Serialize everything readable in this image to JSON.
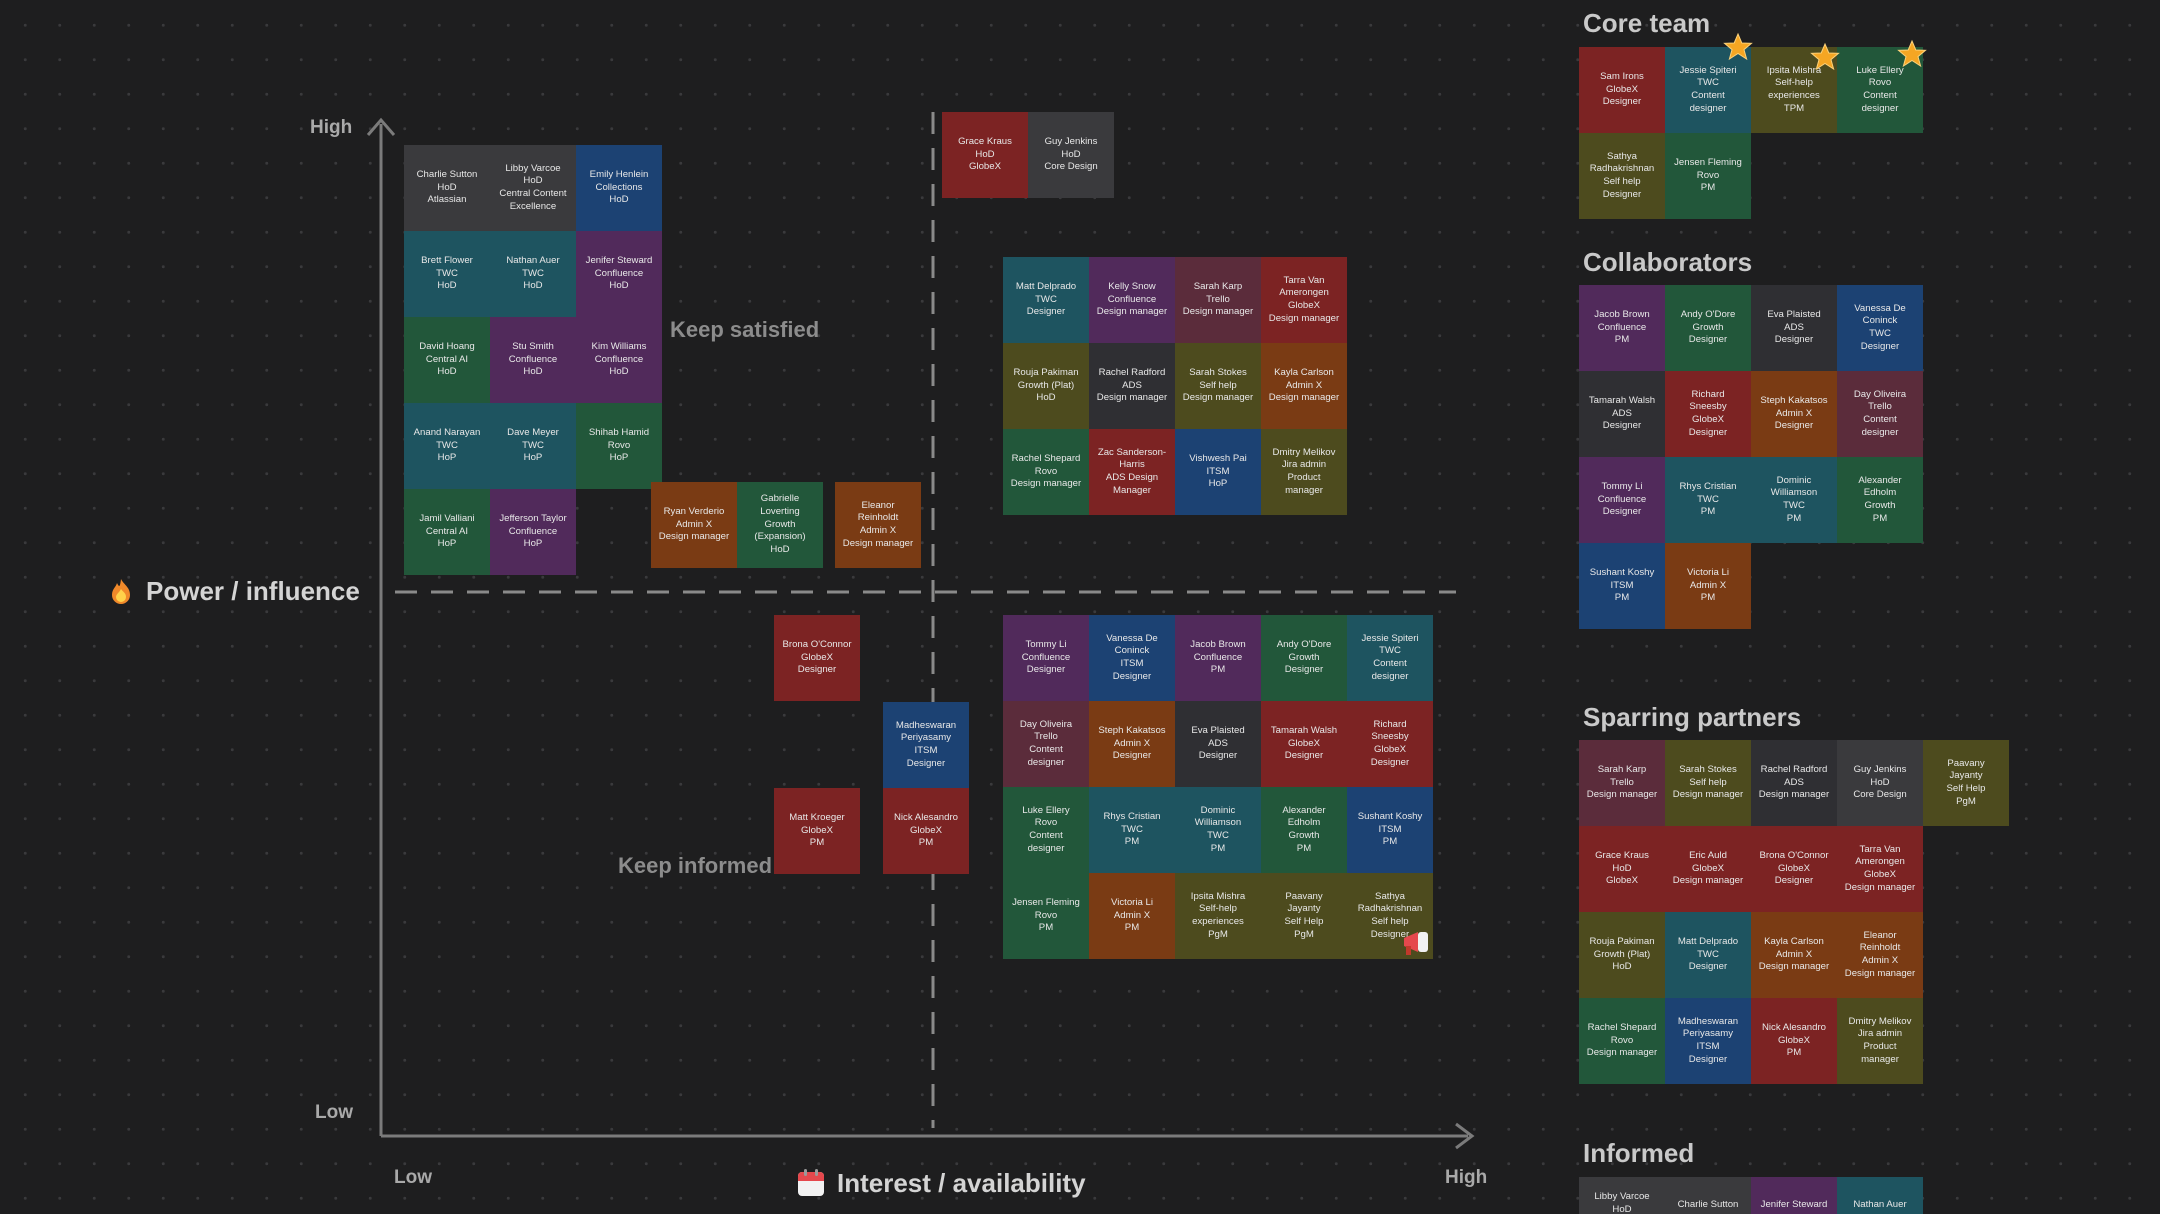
{
  "axes": {
    "y_high": "High",
    "y_low": "Low",
    "y_title": "Power / influence",
    "y_title_icon": "fire-icon",
    "x_low": "Low",
    "x_high": "High",
    "x_title": "Interest / availability",
    "x_title_icon": "calendar-icon"
  },
  "quadrants": {
    "keep_satisfied": "Keep satisfied",
    "keep_informed": "Keep informed"
  },
  "colors": {
    "gray": "#3a3a3d",
    "teal": "#1e5460",
    "blue": "#1c4273",
    "purple": "#512a5b",
    "green": "#22573a",
    "olive": "#4d4b1e",
    "orange": "#7a3b14",
    "red": "#7c2323",
    "rose": "#5b2c3b",
    "slate": "#2f2f33"
  },
  "matrix": {
    "top_left": [
      "Charlie Sutton\nHoD\nAtlassian",
      "Libby Varcoe\nHoD\nCentral Content\nExcellence",
      "Emily Henlein\nCollections\nHoD",
      "Brett Flower\nTWC\nHoD",
      "Nathan Auer\nTWC\nHoD",
      "Jenifer Steward\nConfluence\nHoD",
      "David Hoang\nCentral AI\nHoD",
      "Stu Smith\nConfluence\nHoD",
      "Kim Williams\nConfluence\nHoD",
      "Anand Narayan\nTWC\nHoP",
      "Dave Meyer\nTWC\nHoP",
      "Shihab Hamid\nRovo\nHoP",
      "Jamil Valliani\nCentral AI\nHoP",
      "Jefferson Taylor\nConfluence\nHoP"
    ],
    "top_middle": [
      "Ryan Verderio\nAdmin X\nDesign manager",
      "Gabrielle\nLoverting\nGrowth\n(Expansion)\nHoD",
      "Eleanor\nReinholdt\nAdmin X\nDesign manager"
    ],
    "top_right_pair": [
      "Grace Kraus\nHoD\nGlobeX",
      "Guy Jenkins\nHoD\nCore Design"
    ],
    "top_right": [
      "Matt Delprado\nTWC\nDesigner",
      "Kelly Snow\nConfluence\nDesign manager",
      "Sarah Karp\nTrello\nDesign manager",
      "Tarra Van\nAmerongen\nGlobeX\nDesign manager",
      "Rouja Pakiman\nGrowth (Plat)\nHoD",
      "Rachel Radford\nADS\nDesign manager",
      "Sarah Stokes\nSelf help\nDesign manager",
      "Kayla Carlson\nAdmin X\nDesign manager",
      "Rachel Shepard\nRovo\nDesign manager",
      "Zac Sanderson-\nHarris\nADS Design\nManager",
      "Vishwesh Pai\nITSM\nHoP",
      "Dmitry Melikov\nJira admin\nProduct\nmanager"
    ],
    "bottom_middle": [
      "Brona O'Connor\nGlobeX\nDesigner",
      "Madheswaran\nPeriyasamy\nITSM\nDesigner",
      "Matt Kroeger\nGlobeX\nPM",
      "Nick Alesandro\nGlobeX\nPM"
    ],
    "bottom_right": [
      "Tommy Li\nConfluence\nDesigner",
      "Vanessa De\nConinck\nITSM\nDesigner",
      "Jacob Brown\nConfluence\nPM",
      "Andy O'Dore\nGrowth\nDesigner",
      "Jessie Spiteri\nTWC\nContent\ndesigner",
      "Day Oliveira\nTrello\nContent\ndesigner",
      "Steph Kakatsos\nAdmin X\nDesigner",
      "Eva Plaisted\nADS\nDesigner",
      "Tamarah Walsh\nGlobeX\nDesigner",
      "Richard\nSneesby\nGlobeX\nDesigner",
      "Luke Ellery\nRovo\nContent\ndesigner",
      "Rhys Cristian\nTWC\nPM",
      "Dominic\nWilliamson\nTWC\nPM",
      "Alexander\nEdholm\nGrowth\nPM",
      "Sushant Koshy\nITSM\nPM",
      "Jensen Fleming\nRovo\nPM",
      "Victoria Li\nAdmin X\nPM",
      "Ipsita Mishra\nSelf-help\nexperiences\nPgM",
      "Paavany\nJayanty\nSelf Help\nPgM",
      "Sathya\nRadhakrishnan\nSelf help\nDesigner"
    ]
  },
  "sections": {
    "core_team": {
      "title": "Core team",
      "cards": [
        "Sam Irons\nGlobeX\nDesigner",
        "Jessie Spiteri\nTWC\nContent\ndesigner",
        "Ipsita Mishra\nSelf-help\nexperiences\nTPM",
        "Luke Ellery\nRovo\nContent\ndesigner",
        "Sathya\nRadhakrishnan\nSelf help\nDesigner",
        "Jensen Fleming\nRovo\nPM"
      ]
    },
    "collaborators": {
      "title": "Collaborators",
      "cards": [
        "Jacob Brown\nConfluence\nPM",
        "Andy O'Dore\nGrowth\nDesigner",
        "Eva Plaisted\nADS\nDesigner",
        "Vanessa De\nConinck\nTWC\nDesigner",
        "Tamarah Walsh\nADS\nDesigner",
        "Richard\nSneesby\nGlobeX\nDesigner",
        "Steph Kakatsos\nAdmin X\nDesigner",
        "Day Oliveira\nTrello\nContent\ndesigner",
        "Tommy Li\nConfluence\nDesigner",
        "Rhys Cristian\nTWC\nPM",
        "Dominic\nWilliamson\nTWC\nPM",
        "Alexander\nEdholm\nGrowth\nPM",
        "Sushant Koshy\nITSM\nPM",
        "Victoria Li\nAdmin X\nPM"
      ]
    },
    "sparring_partners": {
      "title": "Sparring partners",
      "cards": [
        "Sarah Karp\nTrello\nDesign manager",
        "Sarah Stokes\nSelf help\nDesign manager",
        "Rachel Radford\nADS\nDesign manager",
        "Guy Jenkins\nHoD\nCore Design",
        "Paavany\nJayanty\nSelf Help\nPgM",
        "Grace Kraus\nHoD\nGlobeX",
        "Eric Auld\nGlobeX\nDesign manager",
        "Brona O'Connor\nGlobeX\nDesigner",
        "Tarra Van\nAmerongen\nGlobeX\nDesign manager",
        "Rouja Pakiman\nGrowth (Plat)\nHoD",
        "Matt Delprado\nTWC\nDesigner",
        "Kayla Carlson\nAdmin X\nDesign manager",
        "Eleanor\nReinholdt\nAdmin X\nDesign manager",
        "Rachel Shepard\nRovo\nDesign manager",
        "Madheswaran\nPeriyasamy\nITSM\nDesigner",
        "Nick Alesandro\nGlobeX\nPM",
        "Dmitry Melikov\nJira admin\nProduct\nmanager"
      ]
    },
    "informed": {
      "title": "Informed",
      "cards": [
        "Libby Varcoe\nHoD",
        "Charlie Sutton",
        "Jenifer Steward",
        "Nathan Auer"
      ]
    }
  }
}
